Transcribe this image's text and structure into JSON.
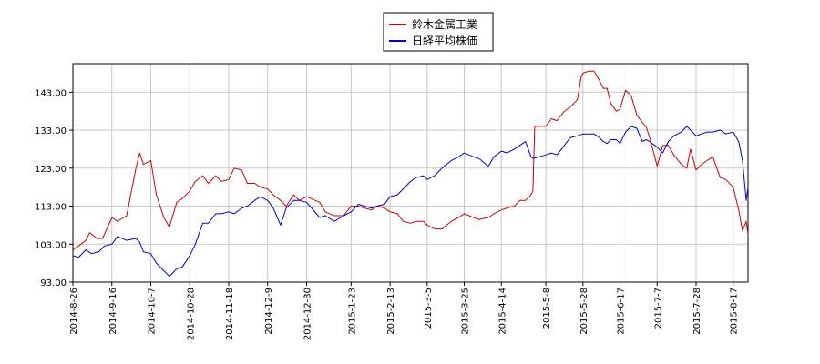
{
  "chart_data": {
    "type": "line",
    "title": "",
    "xlabel": "",
    "ylabel": "",
    "ylim": [
      93.0,
      150.5
    ],
    "grid": true,
    "legend_placement": "top-center",
    "y_ticks": [
      "93.00",
      "103.00",
      "113.00",
      "123.00",
      "133.00",
      "143.00"
    ],
    "x_ticks": [
      "2014-8-26",
      "2014-9-16",
      "2014-10-7",
      "2014-10-28",
      "2014-11-18",
      "2014-12-9",
      "2014-12-30",
      "2015-1-23",
      "2015-2-13",
      "2015-3-5",
      "2015-3-25",
      "2015-4-14",
      "2015-5-8",
      "2015-5-28",
      "2015-6-17",
      "2015-7-7",
      "2015-7-28",
      "2015-8-17"
    ],
    "series": [
      {
        "name": "鈴木金属工業",
        "color": "#cc0000",
        "points": [
          [
            "2014-8-26",
            101.5
          ],
          [
            "2014-8-29",
            102.5
          ],
          [
            "2014-9-2",
            104.0
          ],
          [
            "2014-9-4",
            106.0
          ],
          [
            "2014-9-8",
            104.5
          ],
          [
            "2014-9-11",
            104.5
          ],
          [
            "2014-9-16",
            110.0
          ],
          [
            "2014-9-19",
            109.0
          ],
          [
            "2014-9-24",
            110.5
          ],
          [
            "2014-9-29",
            123.0
          ],
          [
            "2014-10-1",
            127.0
          ],
          [
            "2014-10-3",
            124.0
          ],
          [
            "2014-10-7",
            125.0
          ],
          [
            "2014-10-10",
            116.0
          ],
          [
            "2014-10-14",
            110.0
          ],
          [
            "2014-10-17",
            107.5
          ],
          [
            "2014-10-21",
            114.0
          ],
          [
            "2014-10-24",
            115.0
          ],
          [
            "2014-10-28",
            117.0
          ],
          [
            "2014-10-31",
            119.5
          ],
          [
            "2014-11-4",
            121.0
          ],
          [
            "2014-11-7",
            119.0
          ],
          [
            "2014-11-11",
            121.0
          ],
          [
            "2014-11-14",
            119.5
          ],
          [
            "2014-11-18",
            120.0
          ],
          [
            "2014-11-21",
            123.0
          ],
          [
            "2014-11-25",
            122.5
          ],
          [
            "2014-11-28",
            119.0
          ],
          [
            "2014-12-2",
            119.0
          ],
          [
            "2014-12-5",
            118.0
          ],
          [
            "2014-12-9",
            117.5
          ],
          [
            "2014-12-12",
            116.0
          ],
          [
            "2014-12-16",
            114.5
          ],
          [
            "2014-12-19",
            113.0
          ],
          [
            "2014-12-23",
            116.0
          ],
          [
            "2014-12-26",
            114.5
          ],
          [
            "2014-12-30",
            115.5
          ],
          [
            "2015-1-6",
            114.0
          ],
          [
            "2015-1-9",
            111.5
          ],
          [
            "2015-1-14",
            110.5
          ],
          [
            "2015-1-19",
            110.5
          ],
          [
            "2015-1-23",
            113.0
          ],
          [
            "2015-1-27",
            113.0
          ],
          [
            "2015-1-30",
            112.5
          ],
          [
            "2015-2-3",
            112.0
          ],
          [
            "2015-2-6",
            113.0
          ],
          [
            "2015-2-10",
            112.5
          ],
          [
            "2015-2-13",
            111.5
          ],
          [
            "2015-2-17",
            111.0
          ],
          [
            "2015-2-20",
            109.0
          ],
          [
            "2015-2-24",
            108.5
          ],
          [
            "2015-2-27",
            109.0
          ],
          [
            "2015-3-3",
            109.0
          ],
          [
            "2015-3-5",
            108.0
          ],
          [
            "2015-3-9",
            107.0
          ],
          [
            "2015-3-13",
            107.0
          ],
          [
            "2015-3-18",
            109.0
          ],
          [
            "2015-3-22",
            110.0
          ],
          [
            "2015-3-25",
            111.0
          ],
          [
            "2015-3-30",
            110.0
          ],
          [
            "2015-4-2",
            109.5
          ],
          [
            "2015-4-7",
            110.0
          ],
          [
            "2015-4-10",
            111.0
          ],
          [
            "2015-4-14",
            112.0
          ],
          [
            "2015-4-17",
            112.5
          ],
          [
            "2015-4-21",
            113.0
          ],
          [
            "2015-4-24",
            114.5
          ],
          [
            "2015-4-27",
            114.5
          ],
          [
            "2015-4-30",
            116.0
          ],
          [
            "2015-5-1",
            117.0
          ],
          [
            "2015-5-2",
            134.0
          ],
          [
            "2015-5-8",
            134.0
          ],
          [
            "2015-5-11",
            136.0
          ],
          [
            "2015-5-14",
            135.5
          ],
          [
            "2015-5-18",
            138.0
          ],
          [
            "2015-5-21",
            139.0
          ],
          [
            "2015-5-25",
            141.0
          ],
          [
            "2015-5-27",
            147.0
          ],
          [
            "2015-5-28",
            148.0
          ],
          [
            "2015-5-31",
            148.5
          ],
          [
            "2015-6-3",
            148.5
          ],
          [
            "2015-6-6",
            146.0
          ],
          [
            "2015-6-8",
            144.0
          ],
          [
            "2015-6-10",
            144.0
          ],
          [
            "2015-6-12",
            140.0
          ],
          [
            "2015-6-15",
            138.0
          ],
          [
            "2015-6-17",
            138.5
          ],
          [
            "2015-6-20",
            143.5
          ],
          [
            "2015-6-23",
            142.0
          ],
          [
            "2015-6-26",
            137.0
          ],
          [
            "2015-6-29",
            135.0
          ],
          [
            "2015-7-1",
            134.0
          ],
          [
            "2015-7-3",
            131.0
          ],
          [
            "2015-7-7",
            123.5
          ],
          [
            "2015-7-10",
            129.0
          ],
          [
            "2015-7-13",
            129.0
          ],
          [
            "2015-7-16",
            126.5
          ],
          [
            "2015-7-20",
            124.0
          ],
          [
            "2015-7-23",
            123.0
          ],
          [
            "2015-7-25",
            128.0
          ],
          [
            "2015-7-28",
            122.5
          ],
          [
            "2015-7-31",
            124.0
          ],
          [
            "2015-8-3",
            125.0
          ],
          [
            "2015-8-6",
            126.0
          ],
          [
            "2015-8-10",
            120.5
          ],
          [
            "2015-8-13",
            120.0
          ],
          [
            "2015-8-17",
            118.0
          ],
          [
            "2015-8-20",
            112.0
          ],
          [
            "2015-8-22",
            106.5
          ],
          [
            "2015-8-24",
            109.0
          ],
          [
            "2015-8-25",
            105.5
          ]
        ]
      },
      {
        "name": "日経平均株価",
        "color": "#0000cc",
        "points": [
          [
            "2014-8-26",
            100.0
          ],
          [
            "2014-8-29",
            99.5
          ],
          [
            "2014-9-2",
            101.5
          ],
          [
            "2014-9-5",
            100.5
          ],
          [
            "2014-9-9",
            101.0
          ],
          [
            "2014-9-12",
            102.5
          ],
          [
            "2014-9-16",
            103.0
          ],
          [
            "2014-9-19",
            105.0
          ],
          [
            "2014-9-24",
            104.0
          ],
          [
            "2014-9-29",
            104.5
          ],
          [
            "2014-10-1",
            103.5
          ],
          [
            "2014-10-3",
            101.0
          ],
          [
            "2014-10-7",
            100.5
          ],
          [
            "2014-10-10",
            98.0
          ],
          [
            "2014-10-14",
            96.0
          ],
          [
            "2014-10-17",
            94.5
          ],
          [
            "2014-10-21",
            96.5
          ],
          [
            "2014-10-24",
            97.0
          ],
          [
            "2014-10-28",
            100.0
          ],
          [
            "2014-10-31",
            103.0
          ],
          [
            "2014-11-4",
            108.5
          ],
          [
            "2014-11-7",
            108.5
          ],
          [
            "2014-11-11",
            111.0
          ],
          [
            "2014-11-14",
            111.0
          ],
          [
            "2014-11-18",
            111.5
          ],
          [
            "2014-11-21",
            111.0
          ],
          [
            "2014-11-25",
            112.5
          ],
          [
            "2014-11-28",
            113.0
          ],
          [
            "2014-12-2",
            114.5
          ],
          [
            "2014-12-5",
            115.5
          ],
          [
            "2014-12-9",
            114.5
          ],
          [
            "2014-12-12",
            112.5
          ],
          [
            "2014-12-16",
            108.0
          ],
          [
            "2014-12-19",
            112.5
          ],
          [
            "2014-12-23",
            114.5
          ],
          [
            "2014-12-26",
            114.5
          ],
          [
            "2014-12-30",
            114.0
          ],
          [
            "2015-1-6",
            110.0
          ],
          [
            "2015-1-9",
            110.5
          ],
          [
            "2015-1-14",
            109.0
          ],
          [
            "2015-1-19",
            110.5
          ],
          [
            "2015-1-23",
            111.5
          ],
          [
            "2015-1-27",
            113.5
          ],
          [
            "2015-1-30",
            113.0
          ],
          [
            "2015-2-3",
            112.5
          ],
          [
            "2015-2-6",
            113.0
          ],
          [
            "2015-2-10",
            113.5
          ],
          [
            "2015-2-13",
            115.5
          ],
          [
            "2015-2-17",
            116.0
          ],
          [
            "2015-2-20",
            117.5
          ],
          [
            "2015-2-24",
            119.5
          ],
          [
            "2015-2-27",
            120.5
          ],
          [
            "2015-3-3",
            121.0
          ],
          [
            "2015-3-5",
            120.0
          ],
          [
            "2015-3-9",
            121.0
          ],
          [
            "2015-3-13",
            123.0
          ],
          [
            "2015-3-18",
            125.0
          ],
          [
            "2015-3-22",
            126.0
          ],
          [
            "2015-3-25",
            127.0
          ],
          [
            "2015-3-30",
            126.0
          ],
          [
            "2015-4-2",
            125.5
          ],
          [
            "2015-4-7",
            123.5
          ],
          [
            "2015-4-10",
            126.0
          ],
          [
            "2015-4-14",
            127.5
          ],
          [
            "2015-4-17",
            127.0
          ],
          [
            "2015-4-21",
            128.0
          ],
          [
            "2015-4-24",
            129.0
          ],
          [
            "2015-4-27",
            130.0
          ],
          [
            "2015-4-30",
            126.0
          ],
          [
            "2015-5-1",
            125.5
          ],
          [
            "2015-5-8",
            126.5
          ],
          [
            "2015-5-11",
            127.0
          ],
          [
            "2015-5-14",
            126.5
          ],
          [
            "2015-5-18",
            129.0
          ],
          [
            "2015-5-21",
            131.0
          ],
          [
            "2015-5-25",
            131.5
          ],
          [
            "2015-5-28",
            132.0
          ],
          [
            "2015-5-31",
            132.0
          ],
          [
            "2015-6-3",
            132.0
          ],
          [
            "2015-6-6",
            131.0
          ],
          [
            "2015-6-8",
            130.0
          ],
          [
            "2015-6-10",
            129.5
          ],
          [
            "2015-6-12",
            130.5
          ],
          [
            "2015-6-15",
            130.5
          ],
          [
            "2015-6-17",
            129.5
          ],
          [
            "2015-6-20",
            132.5
          ],
          [
            "2015-6-23",
            134.0
          ],
          [
            "2015-6-26",
            133.5
          ],
          [
            "2015-6-29",
            130.0
          ],
          [
            "2015-7-1",
            130.5
          ],
          [
            "2015-7-3",
            130.0
          ],
          [
            "2015-7-7",
            128.5
          ],
          [
            "2015-7-10",
            127.0
          ],
          [
            "2015-7-13",
            130.0
          ],
          [
            "2015-7-16",
            131.5
          ],
          [
            "2015-7-20",
            132.5
          ],
          [
            "2015-7-23",
            134.0
          ],
          [
            "2015-7-25",
            133.0
          ],
          [
            "2015-7-28",
            131.5
          ],
          [
            "2015-7-31",
            132.0
          ],
          [
            "2015-8-3",
            132.5
          ],
          [
            "2015-8-6",
            132.5
          ],
          [
            "2015-8-10",
            133.0
          ],
          [
            "2015-8-13",
            132.0
          ],
          [
            "2015-8-17",
            132.5
          ],
          [
            "2015-8-20",
            130.0
          ],
          [
            "2015-8-22",
            125.0
          ],
          [
            "2015-8-24",
            114.5
          ],
          [
            "2015-8-25",
            118.0
          ]
        ]
      }
    ]
  }
}
